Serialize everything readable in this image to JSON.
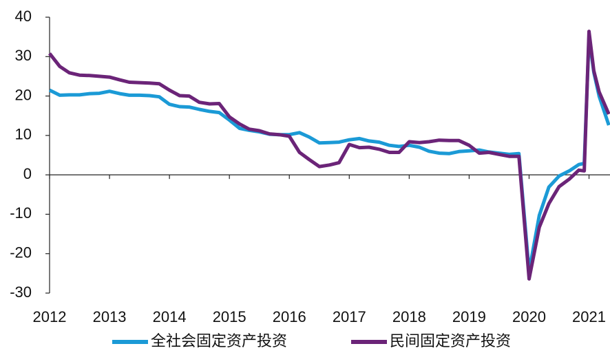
{
  "chart_data": {
    "type": "line",
    "x": [
      2012,
      2012.17,
      2012.33,
      2012.5,
      2012.67,
      2012.83,
      2013,
      2013.17,
      2013.33,
      2013.5,
      2013.67,
      2013.83,
      2014,
      2014.17,
      2014.33,
      2014.5,
      2014.67,
      2014.83,
      2015,
      2015.17,
      2015.33,
      2015.5,
      2015.67,
      2015.83,
      2016,
      2016.17,
      2016.33,
      2016.5,
      2016.67,
      2016.83,
      2017,
      2017.17,
      2017.33,
      2017.5,
      2017.67,
      2017.83,
      2018,
      2018.17,
      2018.33,
      2018.5,
      2018.67,
      2018.83,
      2019,
      2019.17,
      2019.33,
      2019.5,
      2019.67,
      2019.83,
      2020,
      2020.17,
      2020.33,
      2020.5,
      2020.67,
      2020.83,
      2020.92,
      2021,
      2021.08,
      2021.17,
      2021.33
    ],
    "series": [
      {
        "name": "全社会固定资产投资",
        "color": "#1b9ad6",
        "values": [
          21.5,
          20.2,
          20.3,
          20.3,
          20.6,
          20.7,
          21.2,
          20.6,
          20.2,
          20.2,
          20.1,
          19.8,
          17.9,
          17.3,
          17.2,
          16.6,
          16.1,
          15.8,
          13.9,
          11.8,
          11.3,
          10.9,
          10.3,
          10.2,
          10.2,
          10.7,
          9.6,
          8.1,
          8.2,
          8.3,
          8.9,
          9.2,
          8.6,
          8.3,
          7.5,
          7.2,
          7.5,
          7.0,
          6.0,
          5.5,
          5.4,
          5.9,
          6.1,
          6.3,
          5.8,
          5.5,
          5.2,
          5.4,
          -24.5,
          -10.3,
          -3.1,
          -0.3,
          1.0,
          2.6,
          2.9,
          35.0,
          26.0,
          19.9,
          12.6
        ]
      },
      {
        "name": "民间固定资产投资",
        "color": "#6b2478",
        "values": [
          30.8,
          27.5,
          25.9,
          25.3,
          25.2,
          25.0,
          24.8,
          24.1,
          23.5,
          23.4,
          23.3,
          23.1,
          21.5,
          20.1,
          20.0,
          18.4,
          18.0,
          18.1,
          14.7,
          12.9,
          11.6,
          11.2,
          10.4,
          10.2,
          9.8,
          5.7,
          3.9,
          2.1,
          2.5,
          3.1,
          7.7,
          6.9,
          7.0,
          6.5,
          5.7,
          5.7,
          8.4,
          8.2,
          8.4,
          8.8,
          8.7,
          8.7,
          7.5,
          5.5,
          5.7,
          5.2,
          4.7,
          4.7,
          -26.4,
          -13.3,
          -7.3,
          -3.0,
          -1.1,
          1.2,
          1.0,
          36.4,
          26.4,
          21.0,
          15.4
        ]
      }
    ],
    "xlim": [
      2012,
      2021.35
    ],
    "xticks": [
      2012,
      2013,
      2014,
      2015,
      2016,
      2017,
      2018,
      2019,
      2020,
      2021
    ],
    "ylim": [
      -30,
      40
    ],
    "yticks": [
      -30,
      -20,
      -10,
      0,
      10,
      20,
      30,
      40
    ],
    "legend": "bottom"
  }
}
